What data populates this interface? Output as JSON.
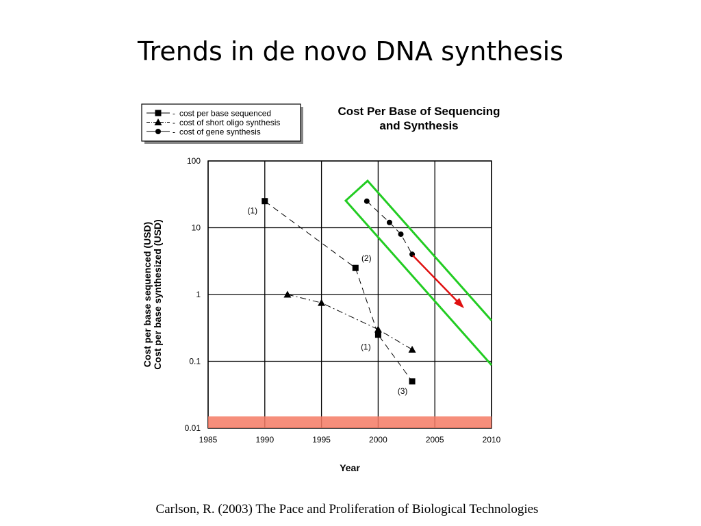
{
  "slide_title": "Trends in de novo DNA synthesis",
  "caption": "Carlson, R. (2003) The Pace and Proliferation of Biological Technologies",
  "chart_data": {
    "type": "line",
    "title": [
      "Cost Per Base of Sequencing",
      "and Synthesis"
    ],
    "x_label": "Year",
    "y_label": [
      "Cost per base sequenced (USD)",
      "Cost per base synthesized (USD)"
    ],
    "xlim": [
      1985,
      2010
    ],
    "xticks": [
      1985,
      1990,
      1995,
      2000,
      2005,
      2010
    ],
    "ylim": [
      0.01,
      100
    ],
    "yticks": [
      0.01,
      0.1,
      1,
      10,
      100
    ],
    "log_y": true,
    "grid": true,
    "legend": "top-left",
    "series": [
      {
        "name": "cost per base sequenced",
        "color": "#000000",
        "marker": "square",
        "dash": "dashed",
        "x": [
          1990,
          1998,
          2000,
          2003
        ],
        "values": [
          25,
          2.5,
          0.25,
          0.05
        ],
        "point_labels": [
          "(1)",
          "(2)",
          "(1)",
          "(3)"
        ]
      },
      {
        "name": "cost of short oligo synthesis",
        "color": "#000000",
        "marker": "triangle",
        "dash": "dashdot",
        "x": [
          1992,
          1995,
          2000,
          2003
        ],
        "values": [
          1,
          0.75,
          0.3,
          0.15
        ]
      },
      {
        "name": "cost of gene synthesis",
        "color": "#000000",
        "marker": "circle",
        "dash": "dashed",
        "x": [
          1999,
          2001,
          2002,
          2003
        ],
        "values": [
          25,
          12,
          8,
          4
        ]
      }
    ]
  }
}
